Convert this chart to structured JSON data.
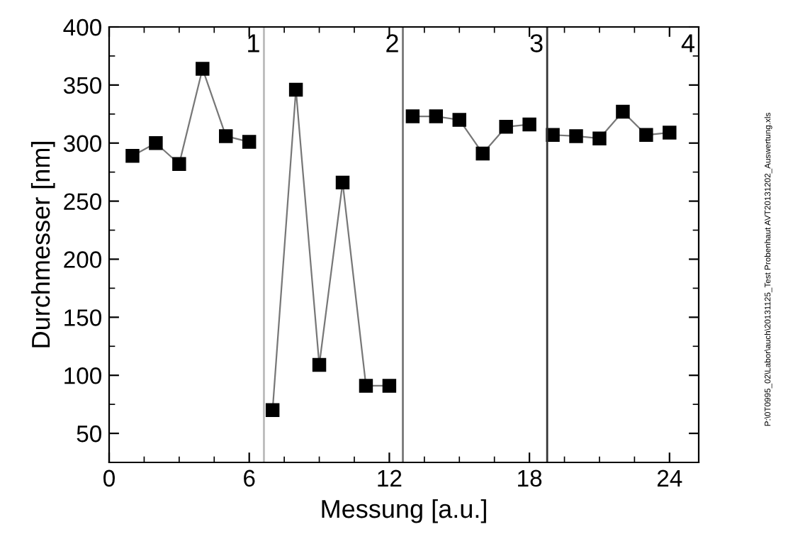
{
  "chart_data": {
    "type": "line",
    "xlabel": "Messung [a.u.]",
    "ylabel": "Durchmesser [nm]",
    "series": [
      {
        "color": "#000000",
        "x": [
          1,
          2,
          3,
          4,
          5,
          6
        ],
        "values": [
          289,
          300,
          282,
          364,
          306,
          301
        ]
      },
      {
        "color": "#000000",
        "x": [
          7,
          8,
          9,
          10,
          11,
          12
        ],
        "values": [
          70,
          346,
          109,
          266,
          91,
          91
        ]
      },
      {
        "color": "#000000",
        "x": [
          13,
          14,
          15,
          16,
          17,
          18
        ],
        "values": [
          323,
          323,
          320,
          291,
          314,
          316
        ]
      },
      {
        "color": "#000000",
        "x": [
          19,
          20,
          21,
          22,
          23,
          24
        ],
        "values": [
          307,
          306,
          304,
          327,
          307,
          309
        ]
      }
    ],
    "marker": "square",
    "line_style": "solid",
    "xlim": [
      0,
      25.25
    ],
    "xticks": [
      0,
      6,
      12,
      18,
      24
    ],
    "ylim": [
      25,
      400
    ],
    "yticks": [
      50,
      100,
      150,
      200,
      250,
      300,
      350,
      400
    ],
    "ref_lines": [
      {
        "axis": "x",
        "value": 6.63,
        "color": "#bbbbbb"
      },
      {
        "axis": "x",
        "value": 12.58,
        "color": "#777777"
      },
      {
        "axis": "x",
        "value": 18.76,
        "color": "#333333"
      }
    ],
    "annotations": [
      "1",
      "2",
      "3",
      "4",
      "P:\\0T0995_02\\Labor\\auch\\20131125_Test Probenhaut AVT20131202_Auswertung.xls"
    ],
    "grid": false,
    "legend": false
  }
}
